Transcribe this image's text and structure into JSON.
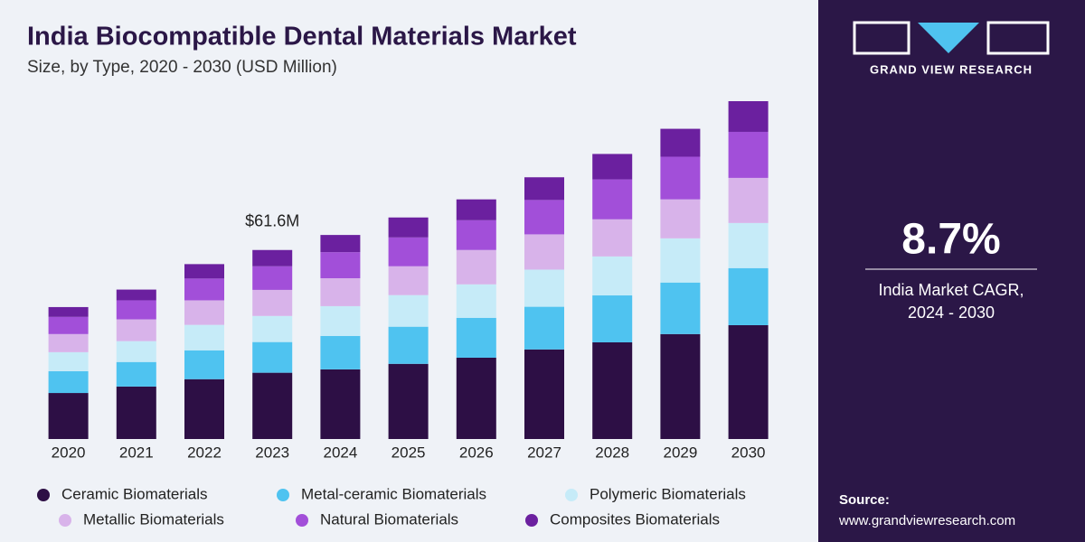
{
  "chart_data": {
    "type": "stacked-bar",
    "title": "India Biocompatible Dental Materials Market",
    "subtitle": "Size, by Type, 2020 - 2030 (USD Million)",
    "categories": [
      "2020",
      "2021",
      "2022",
      "2023",
      "2024",
      "2025",
      "2026",
      "2027",
      "2028",
      "2029",
      "2030"
    ],
    "series": [
      {
        "name": "Ceramic Biomaterials",
        "color": "#2d0f45",
        "values": [
          15.0,
          17.1,
          19.5,
          21.6,
          22.7,
          24.5,
          26.5,
          29.2,
          31.5,
          34.2,
          37.1
        ]
      },
      {
        "name": "Metal-ceramic Biomaterials",
        "color": "#4fc3f0",
        "values": [
          7.1,
          8.0,
          9.4,
          10.0,
          10.9,
          12.1,
          13.0,
          13.9,
          15.3,
          16.8,
          18.6
        ]
      },
      {
        "name": "Polymeric Biomaterials",
        "color": "#c6ebf8",
        "values": [
          6.2,
          6.8,
          8.3,
          8.5,
          9.7,
          10.3,
          10.9,
          12.1,
          12.7,
          14.4,
          14.7
        ]
      },
      {
        "name": "Metallic Biomaterials",
        "color": "#d8b3ea",
        "values": [
          5.9,
          7.1,
          8.0,
          8.5,
          9.1,
          9.4,
          11.2,
          11.5,
          12.1,
          12.7,
          14.7
        ]
      },
      {
        "name": "Natural Biomaterials",
        "color": "#a24fd9",
        "values": [
          5.6,
          6.2,
          7.1,
          7.7,
          8.5,
          9.4,
          9.7,
          11.2,
          13.0,
          13.9,
          15.0
        ]
      },
      {
        "name": "Composites Biomaterials",
        "color": "#6b209f",
        "values": [
          3.2,
          3.5,
          4.7,
          5.3,
          5.6,
          6.5,
          6.8,
          7.4,
          8.3,
          9.1,
          10.0
        ]
      }
    ],
    "annotation": {
      "text": "$61.6M",
      "category": "2023"
    }
  },
  "side_panel": {
    "brand": "GRAND VIEW RESEARCH",
    "cagr": "8.7%",
    "cagr_label_1": "India Market CAGR,",
    "cagr_label_2": "2024 - 2030",
    "source_label": "Source:",
    "source_url": "www.grandviewresearch.com"
  }
}
